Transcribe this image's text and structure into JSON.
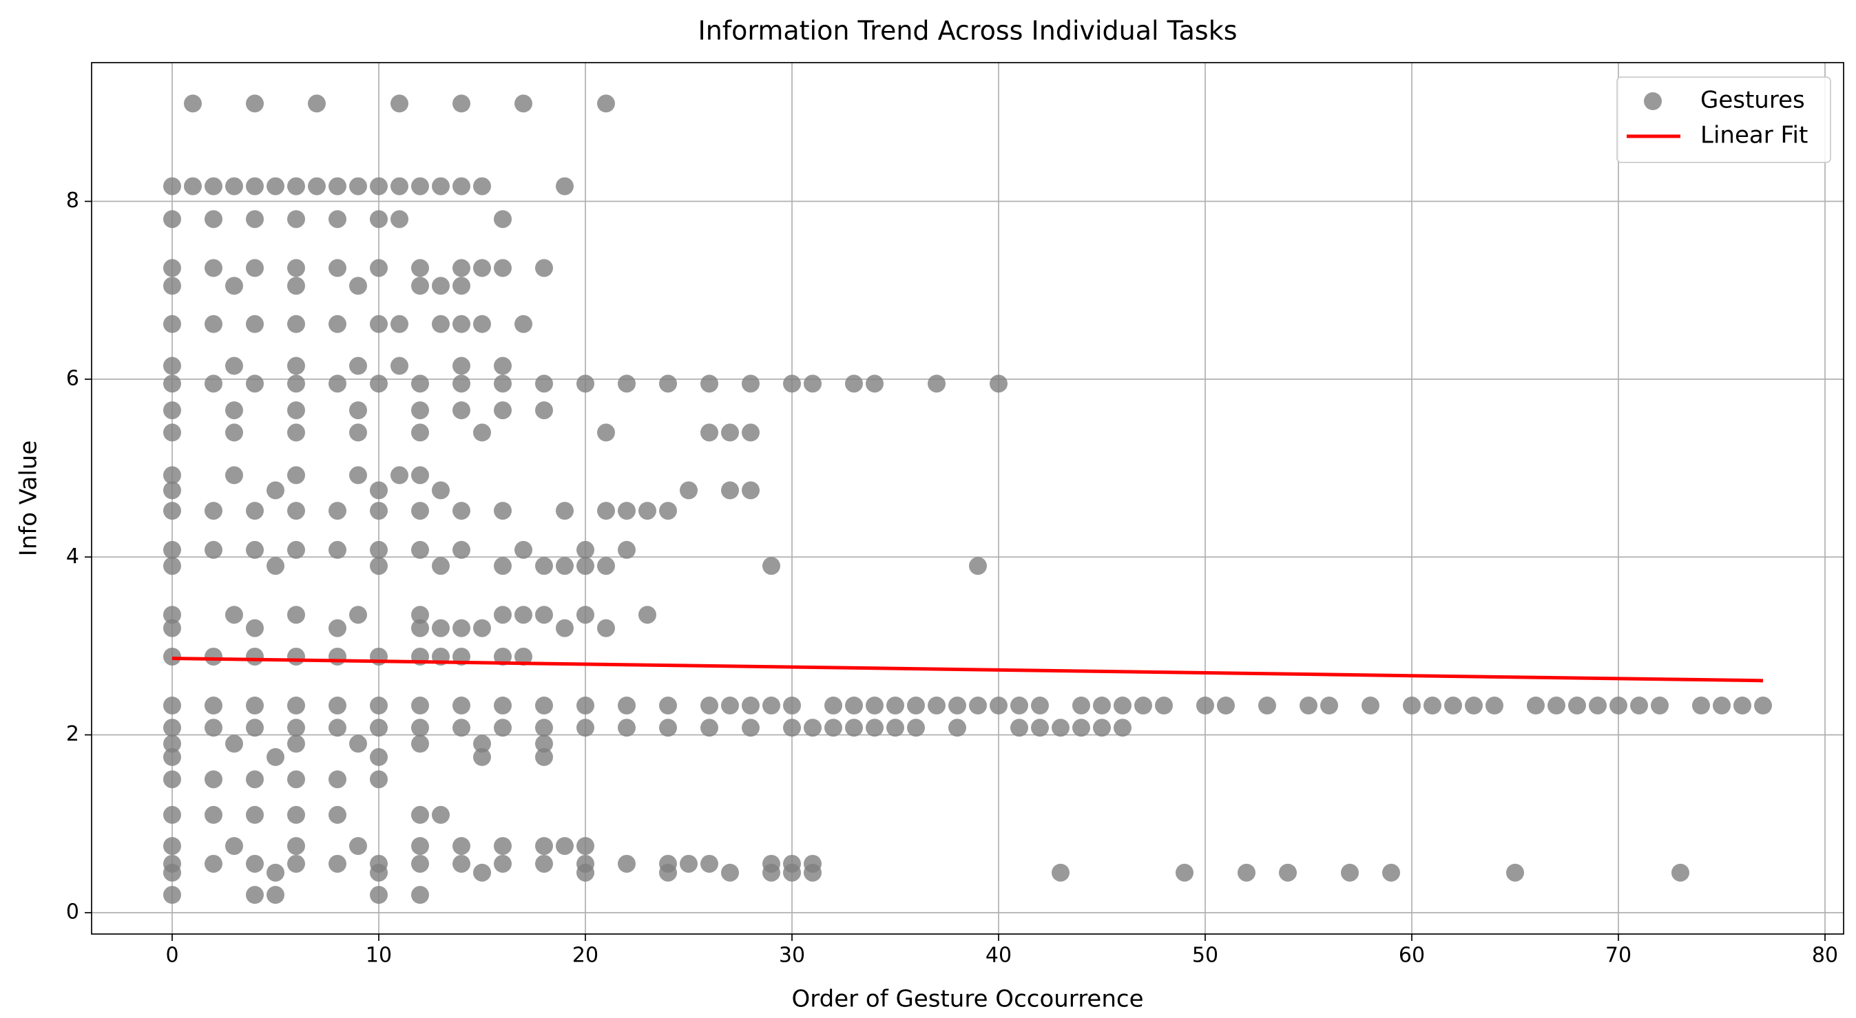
{
  "chart_data": {
    "type": "scatter",
    "title": "Information Trend Across Individual Tasks",
    "xlabel": "Order of Gesture Occourrence",
    "ylabel": "Info Value",
    "xlim": [
      -3.9,
      80.9
    ],
    "ylim": [
      -0.24,
      9.56
    ],
    "xticks": [
      0,
      10,
      20,
      30,
      40,
      50,
      60,
      70,
      80
    ],
    "yticks": [
      0,
      2,
      4,
      6,
      8
    ],
    "grid": true,
    "legend": "upper right",
    "series": [
      {
        "name": "Gestures",
        "color": "#808080",
        "kind": "scatter",
        "x": [
          1,
          4,
          7,
          11,
          14,
          17,
          21,
          0,
          1,
          2,
          3,
          4,
          5,
          6,
          7,
          8,
          9,
          10,
          11,
          12,
          13,
          14,
          15,
          19,
          0,
          2,
          4,
          6,
          8,
          10,
          11,
          16,
          0,
          2,
          4,
          6,
          8,
          10,
          12,
          14,
          15,
          16,
          18,
          0,
          3,
          6,
          9,
          12,
          13,
          14,
          0,
          2,
          4,
          6,
          8,
          10,
          11,
          13,
          14,
          15,
          17,
          0,
          3,
          6,
          9,
          11,
          14,
          16,
          0,
          2,
          4,
          6,
          8,
          10,
          12,
          14,
          16,
          18,
          20,
          22,
          24,
          26,
          28,
          30,
          31,
          33,
          34,
          37,
          40,
          0,
          3,
          6,
          9,
          12,
          14,
          16,
          18,
          0,
          3,
          6,
          9,
          12,
          15,
          21,
          26,
          27,
          28,
          0,
          3,
          6,
          9,
          11,
          12,
          0,
          5,
          10,
          13,
          25,
          27,
          28,
          0,
          2,
          4,
          6,
          8,
          10,
          12,
          14,
          16,
          19,
          21,
          22,
          23,
          24,
          0,
          2,
          4,
          6,
          8,
          10,
          12,
          14,
          17,
          20,
          22,
          0,
          5,
          10,
          13,
          16,
          18,
          19,
          20,
          21,
          29,
          39,
          0,
          3,
          6,
          9,
          12,
          16,
          17,
          18,
          20,
          23,
          0,
          4,
          8,
          12,
          13,
          14,
          15,
          19,
          21,
          0,
          2,
          4,
          6,
          8,
          10,
          12,
          13,
          14,
          16,
          17,
          0,
          2,
          4,
          6,
          8,
          10,
          12,
          14,
          16,
          18,
          20,
          22,
          24,
          26,
          27,
          28,
          29,
          30,
          32,
          33,
          34,
          35,
          36,
          37,
          38,
          39,
          40,
          41,
          42,
          44,
          45,
          46,
          47,
          48,
          50,
          51,
          53,
          55,
          56,
          58,
          60,
          61,
          62,
          63,
          64,
          66,
          67,
          68,
          69,
          70,
          71,
          72,
          74,
          75,
          76,
          77,
          0,
          2,
          4,
          6,
          8,
          10,
          12,
          14,
          16,
          18,
          20,
          22,
          24,
          26,
          28,
          30,
          31,
          32,
          33,
          34,
          35,
          36,
          38,
          41,
          42,
          43,
          44,
          45,
          46,
          0,
          3,
          6,
          9,
          12,
          15,
          18,
          0,
          5,
          10,
          15,
          18,
          0,
          2,
          4,
          6,
          8,
          10,
          0,
          2,
          4,
          6,
          8,
          12,
          13,
          0,
          3,
          6,
          9,
          12,
          14,
          16,
          18,
          19,
          20,
          0,
          2,
          4,
          6,
          8,
          10,
          12,
          14,
          16,
          18,
          20,
          22,
          24,
          25,
          26,
          29,
          30,
          31,
          0,
          5,
          10,
          15,
          20,
          24,
          27,
          29,
          30,
          31,
          43,
          49,
          52,
          54,
          57,
          59,
          65,
          73,
          0,
          4,
          5,
          10,
          12
        ],
        "values": [
          9.1,
          9.1,
          9.1,
          9.1,
          9.1,
          9.1,
          9.1,
          8.17,
          8.17,
          8.17,
          8.17,
          8.17,
          8.17,
          8.17,
          8.17,
          8.17,
          8.17,
          8.17,
          8.17,
          8.17,
          8.17,
          8.17,
          8.17,
          8.17,
          7.8,
          7.8,
          7.8,
          7.8,
          7.8,
          7.8,
          7.8,
          7.8,
          7.25,
          7.25,
          7.25,
          7.25,
          7.25,
          7.25,
          7.25,
          7.25,
          7.25,
          7.25,
          7.25,
          7.05,
          7.05,
          7.05,
          7.05,
          7.05,
          7.05,
          7.05,
          6.62,
          6.62,
          6.62,
          6.62,
          6.62,
          6.62,
          6.62,
          6.62,
          6.62,
          6.62,
          6.62,
          6.15,
          6.15,
          6.15,
          6.15,
          6.15,
          6.15,
          6.15,
          5.95,
          5.95,
          5.95,
          5.95,
          5.95,
          5.95,
          5.95,
          5.95,
          5.95,
          5.95,
          5.95,
          5.95,
          5.95,
          5.95,
          5.95,
          5.95,
          5.95,
          5.95,
          5.95,
          5.95,
          5.95,
          5.65,
          5.65,
          5.65,
          5.65,
          5.65,
          5.65,
          5.65,
          5.65,
          5.4,
          5.4,
          5.4,
          5.4,
          5.4,
          5.4,
          5.4,
          5.4,
          5.4,
          5.4,
          4.92,
          4.92,
          4.92,
          4.92,
          4.92,
          4.92,
          4.75,
          4.75,
          4.75,
          4.75,
          4.75,
          4.75,
          4.75,
          4.52,
          4.52,
          4.52,
          4.52,
          4.52,
          4.52,
          4.52,
          4.52,
          4.52,
          4.52,
          4.52,
          4.52,
          4.52,
          4.52,
          4.08,
          4.08,
          4.08,
          4.08,
          4.08,
          4.08,
          4.08,
          4.08,
          4.08,
          4.08,
          4.08,
          3.9,
          3.9,
          3.9,
          3.9,
          3.9,
          3.9,
          3.9,
          3.9,
          3.9,
          3.9,
          3.9,
          3.35,
          3.35,
          3.35,
          3.35,
          3.35,
          3.35,
          3.35,
          3.35,
          3.35,
          3.35,
          3.2,
          3.2,
          3.2,
          3.2,
          3.2,
          3.2,
          3.2,
          3.2,
          3.2,
          2.88,
          2.88,
          2.88,
          2.88,
          2.88,
          2.88,
          2.88,
          2.88,
          2.88,
          2.88,
          2.88,
          2.33,
          2.33,
          2.33,
          2.33,
          2.33,
          2.33,
          2.33,
          2.33,
          2.33,
          2.33,
          2.33,
          2.33,
          2.33,
          2.33,
          2.33,
          2.33,
          2.33,
          2.33,
          2.33,
          2.33,
          2.33,
          2.33,
          2.33,
          2.33,
          2.33,
          2.33,
          2.33,
          2.33,
          2.33,
          2.33,
          2.33,
          2.33,
          2.33,
          2.33,
          2.33,
          2.33,
          2.33,
          2.33,
          2.33,
          2.33,
          2.33,
          2.33,
          2.33,
          2.33,
          2.33,
          2.33,
          2.33,
          2.33,
          2.33,
          2.33,
          2.33,
          2.33,
          2.33,
          2.33,
          2.33,
          2.33,
          2.08,
          2.08,
          2.08,
          2.08,
          2.08,
          2.08,
          2.08,
          2.08,
          2.08,
          2.08,
          2.08,
          2.08,
          2.08,
          2.08,
          2.08,
          2.08,
          2.08,
          2.08,
          2.08,
          2.08,
          2.08,
          2.08,
          2.08,
          2.08,
          2.08,
          2.08,
          2.08,
          2.08,
          2.08,
          1.9,
          1.9,
          1.9,
          1.9,
          1.9,
          1.9,
          1.9,
          1.75,
          1.75,
          1.75,
          1.75,
          1.75,
          1.5,
          1.5,
          1.5,
          1.5,
          1.5,
          1.5,
          1.1,
          1.1,
          1.1,
          1.1,
          1.1,
          1.1,
          1.1,
          0.75,
          0.75,
          0.75,
          0.75,
          0.75,
          0.75,
          0.75,
          0.75,
          0.75,
          0.75,
          0.55,
          0.55,
          0.55,
          0.55,
          0.55,
          0.55,
          0.55,
          0.55,
          0.55,
          0.55,
          0.55,
          0.55,
          0.55,
          0.55,
          0.55,
          0.55,
          0.55,
          0.55,
          0.45,
          0.45,
          0.45,
          0.45,
          0.45,
          0.45,
          0.45,
          0.45,
          0.45,
          0.45,
          0.45,
          0.45,
          0.45,
          0.45,
          0.45,
          0.45,
          0.45,
          0.45,
          0.2,
          0.2,
          0.2,
          0.2,
          0.2
        ]
      },
      {
        "name": "Linear Fit",
        "color": "#ff0000",
        "kind": "line",
        "x": [
          0,
          77
        ],
        "values": [
          2.86,
          2.61
        ]
      }
    ]
  }
}
